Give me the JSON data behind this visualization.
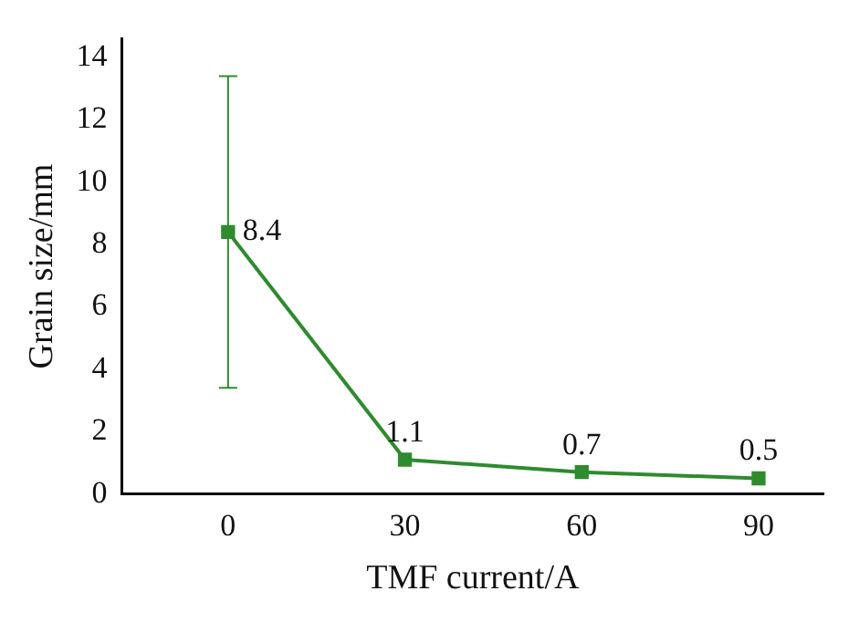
{
  "chart_data": {
    "type": "line",
    "xlabel": "TMF current/A",
    "ylabel": "Grain size/mm",
    "x": [
      0,
      30,
      60,
      90
    ],
    "series": [
      {
        "color": "#2e8b2e",
        "values": [
          8.4,
          1.1,
          0.7,
          0.5
        ],
        "errors": [
          5,
          null,
          null,
          null
        ]
      }
    ],
    "xlim": [
      -18,
      101
    ],
    "xticks": [
      0,
      30,
      60,
      90
    ],
    "ylim": [
      0,
      14.6
    ],
    "yticks": [
      0,
      2,
      4,
      6,
      8,
      10,
      12,
      14
    ],
    "grid": false,
    "legend": false,
    "marker": "square",
    "line_style": "solid",
    "data_labels": true
  }
}
